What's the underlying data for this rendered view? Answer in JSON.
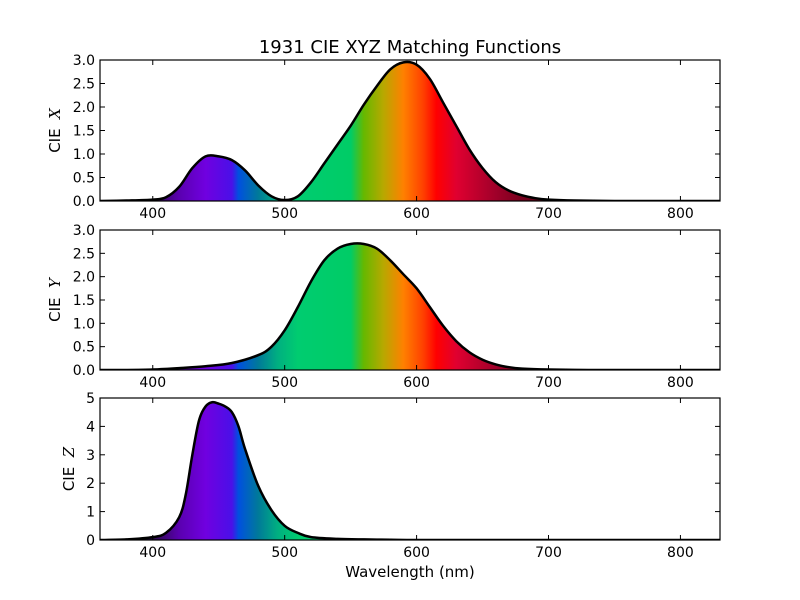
{
  "chart_data": {
    "type": "area",
    "title": "1931 CIE XYZ Matching Functions",
    "xlabel": "Wavelength (nm)",
    "xlim": [
      360,
      830
    ],
    "x_ticks": [
      400,
      500,
      600,
      700,
      800
    ],
    "fill": "spectral color gradient by wavelength",
    "panels": [
      {
        "name": "X",
        "ylabel_prefix": "CIE",
        "ylabel_symbol": "X",
        "ylim": [
          0,
          3.0
        ],
        "y_ticks": [
          "0.0",
          "0.5",
          "1.0",
          "1.5",
          "2.0",
          "2.5",
          "3.0"
        ],
        "x": [
          360,
          380,
          400,
          410,
          420,
          430,
          440,
          450,
          460,
          470,
          480,
          490,
          500,
          510,
          520,
          530,
          540,
          550,
          560,
          570,
          580,
          590,
          600,
          610,
          620,
          630,
          640,
          650,
          660,
          670,
          680,
          690,
          700,
          720,
          750,
          800,
          830
        ],
        "values": [
          0.0,
          0.01,
          0.03,
          0.08,
          0.3,
          0.7,
          0.95,
          0.95,
          0.87,
          0.65,
          0.33,
          0.1,
          0.02,
          0.1,
          0.4,
          0.8,
          1.2,
          1.6,
          2.05,
          2.45,
          2.8,
          2.95,
          2.9,
          2.6,
          2.1,
          1.6,
          1.1,
          0.7,
          0.4,
          0.22,
          0.12,
          0.06,
          0.03,
          0.01,
          0.0,
          0.0,
          0.0
        ]
      },
      {
        "name": "Y",
        "ylabel_prefix": "CIE",
        "ylabel_symbol": "Y",
        "ylim": [
          0,
          3.0
        ],
        "y_ticks": [
          "0.0",
          "0.5",
          "1.0",
          "1.5",
          "2.0",
          "2.5",
          "3.0"
        ],
        "x": [
          360,
          380,
          400,
          420,
          440,
          460,
          480,
          490,
          500,
          510,
          520,
          530,
          540,
          550,
          560,
          570,
          580,
          590,
          600,
          610,
          620,
          630,
          640,
          650,
          660,
          670,
          680,
          700,
          730,
          760,
          830
        ],
        "values": [
          0.0,
          0.0,
          0.01,
          0.04,
          0.08,
          0.15,
          0.32,
          0.5,
          0.85,
          1.35,
          1.9,
          2.35,
          2.6,
          2.7,
          2.7,
          2.6,
          2.35,
          2.05,
          1.75,
          1.35,
          0.95,
          0.62,
          0.38,
          0.22,
          0.12,
          0.06,
          0.03,
          0.01,
          0.0,
          0.0,
          0.0
        ]
      },
      {
        "name": "Z",
        "ylabel_prefix": "CIE",
        "ylabel_symbol": "Z",
        "ylim": [
          0,
          5
        ],
        "y_ticks": [
          "0",
          "1",
          "2",
          "3",
          "4",
          "5"
        ],
        "x": [
          360,
          380,
          400,
          410,
          420,
          425,
          430,
          435,
          440,
          445,
          450,
          455,
          460,
          465,
          470,
          480,
          490,
          500,
          510,
          520,
          540,
          560,
          580,
          600,
          650,
          700,
          830
        ],
        "values": [
          0.0,
          0.02,
          0.1,
          0.25,
          0.8,
          1.6,
          3.0,
          4.2,
          4.7,
          4.85,
          4.8,
          4.7,
          4.5,
          4.0,
          3.2,
          1.9,
          1.05,
          0.5,
          0.25,
          0.1,
          0.04,
          0.02,
          0.01,
          0.0,
          0.0,
          0.0,
          0.0
        ]
      }
    ]
  }
}
